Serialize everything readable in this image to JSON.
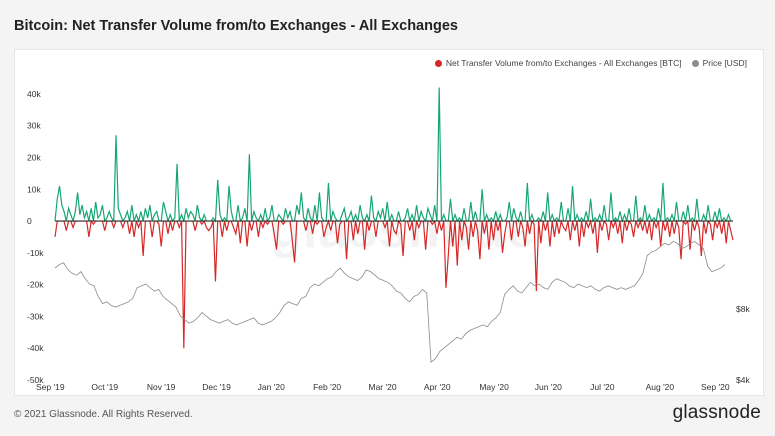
{
  "header": {
    "title": "Bitcoin: Net Transfer Volume from/to Exchanges - All Exchanges"
  },
  "legend": {
    "series1": "Net Transfer Volume from/to Exchanges - All Exchanges [BTC]",
    "series2": "Price [USD]"
  },
  "watermark": "glassnode",
  "footer": {
    "copyright": "© 2021 Glassnode. All Rights Reserved.",
    "logo": "glassnode"
  },
  "colors": {
    "positive": "#17a673",
    "negative": "#d62828",
    "price": "#8c8c8c",
    "legend_net": "#d62828",
    "legend_price": "#8c8c8c"
  },
  "chart_data": {
    "type": "area",
    "x_labels": [
      "Sep '19",
      "Oct '19",
      "Nov '19",
      "Dec '19",
      "Jan '20",
      "Feb '20",
      "Mar '20",
      "Apr '20",
      "May '20",
      "Jun '20",
      "Jul '20",
      "Aug '20",
      "Sep '20"
    ],
    "y_left_ticks": [
      "40k",
      "30k",
      "20k",
      "10k",
      "0",
      "-10k",
      "-20k",
      "-30k",
      "-40k",
      "-50k"
    ],
    "y_left_range": [
      -50000,
      45000
    ],
    "y_right_ticks": [
      "$8k",
      "$4k"
    ],
    "y_right_range": [
      4000,
      21000
    ],
    "net_volume_btc": [
      -5000,
      7000,
      11000,
      5000,
      3000,
      -3000,
      4000,
      2000,
      -2000,
      3000,
      9000,
      2000,
      5000,
      1000,
      3000,
      -5000,
      4000,
      -1000,
      6000,
      1000,
      2000,
      5000,
      -3000,
      1000,
      3000,
      1000,
      -2000,
      27000,
      4000,
      2000,
      -2000,
      1000,
      3000,
      -4000,
      5000,
      -5000,
      2000,
      -2000,
      3000,
      -11000,
      4000,
      1000,
      5000,
      -5000,
      2000,
      3000,
      -1000,
      -8000,
      6000,
      3000,
      -4000,
      2000,
      -3000,
      1000,
      18000,
      -2000,
      2000,
      -40000,
      4000,
      1000,
      3000,
      2000,
      -3000,
      5000,
      1000,
      -1000,
      2000,
      -2000,
      -3000,
      -2000,
      1000,
      -19000,
      13000,
      2000,
      -5000,
      1000,
      -3000,
      11000,
      3000,
      -2000,
      -4000,
      5000,
      -7000,
      1000,
      4000,
      -8000,
      21000,
      -3000,
      3000,
      1000,
      -5000,
      2000,
      -2000,
      4000,
      -1000,
      1000,
      5000,
      -4000,
      -9000,
      2000,
      1000,
      -1000,
      4000,
      1000,
      3000,
      -6000,
      -13000,
      5000,
      2000,
      9000,
      1000,
      -3000,
      4000,
      1000,
      -4000,
      5000,
      -1000,
      9000,
      1000,
      -5000,
      -2000,
      12000,
      -3000,
      3000,
      1000,
      -7000,
      -1000,
      2000,
      4000,
      -12000,
      1000,
      3000,
      -6000,
      2000,
      -4000,
      5000,
      1000,
      -9000,
      2000,
      -3000,
      8000,
      1000,
      -5000,
      3000,
      1000,
      4000,
      -2000,
      6000,
      -8000,
      2000,
      -3000,
      -4000,
      3000,
      -1000,
      -11000,
      1000,
      4000,
      -3000,
      2000,
      -6000,
      5000,
      -2000,
      3000,
      1000,
      -9000,
      4000,
      2000,
      -1000,
      5000,
      -4000,
      42000,
      -3000,
      2000,
      -21000,
      -11000,
      7000,
      -8000,
      2000,
      -14000,
      1000,
      -6000,
      4000,
      -2000,
      -9000,
      6000,
      -5000,
      3000,
      -3000,
      -12000,
      10000,
      -4000,
      2000,
      -9000,
      1000,
      -6000,
      3000,
      -3000,
      2000,
      -10000,
      -4000,
      1000,
      6000,
      -6000,
      4000,
      1000,
      -5000,
      3000,
      -2000,
      -8000,
      12000,
      -4000,
      2000,
      -1000,
      -22000,
      1000,
      -7000,
      3000,
      -3000,
      9000,
      -8000,
      2000,
      -5000,
      1000,
      -4000,
      6000,
      -2000,
      -3000,
      4000,
      -6000,
      11000,
      -3000,
      2000,
      -8000,
      1000,
      -5000,
      3000,
      -2000,
      7000,
      -4000,
      1000,
      -10000,
      2000,
      -3000,
      5000,
      -1000,
      -6000,
      9000,
      -2000,
      1000,
      -4000,
      3000,
      -7000,
      2000,
      -3000,
      4000,
      -1000,
      -5000,
      8000,
      -2000,
      1000,
      -3000,
      5000,
      -4000,
      2000,
      -6000,
      1000,
      -2000,
      4000,
      -8000,
      12000,
      -3000,
      1000,
      -5000,
      2000,
      -4000,
      6000,
      -2000,
      -12000,
      3000,
      -1000,
      5000,
      -9000,
      1000,
      -3000,
      7000,
      -2000,
      -11000,
      2000,
      -4000,
      5000,
      -1000,
      -6000,
      3000,
      -2000,
      4000,
      -4000,
      1000,
      -7000,
      2000,
      -3000,
      -6000
    ],
    "price_usd": [
      10300,
      10500,
      10600,
      10200,
      10000,
      9900,
      10100,
      9700,
      9400,
      9300,
      8700,
      8300,
      8400,
      8200,
      8100,
      8200,
      8300,
      8400,
      8600,
      9200,
      9300,
      9400,
      9200,
      9000,
      9100,
      8700,
      8500,
      8300,
      8100,
      7600,
      7400,
      7200,
      7300,
      7500,
      7800,
      7600,
      7400,
      7300,
      7200,
      7300,
      7400,
      7200,
      7100,
      7200,
      7300,
      7400,
      7500,
      7200,
      7100,
      7200,
      7300,
      7500,
      7800,
      8200,
      8400,
      8300,
      8200,
      8600,
      8700,
      9200,
      9400,
      9300,
      9500,
      9700,
      9800,
      10100,
      10300,
      10000,
      9800,
      9700,
      9600,
      9800,
      10200,
      10100,
      9900,
      9700,
      9600,
      9500,
      9300,
      9000,
      8900,
      8600,
      8400,
      8700,
      8800,
      9100,
      8900,
      5000,
      5200,
      5600,
      5800,
      6000,
      6200,
      6400,
      6300,
      6600,
      6800,
      6900,
      7000,
      7100,
      7000,
      7300,
      7500,
      7800,
      8800,
      9100,
      9300,
      9000,
      8900,
      9200,
      9500,
      9300,
      9400,
      9200,
      9100,
      9500,
      9700,
      9600,
      9500,
      9300,
      9200,
      9400,
      9300,
      9200,
      9300,
      9100,
      9000,
      9200,
      9300,
      9200,
      9100,
      9200,
      9100,
      9200,
      9300,
      9600,
      10000,
      11000,
      11200,
      11300,
      11500,
      11700,
      11600,
      11800,
      11700,
      11400,
      11500,
      11700,
      11800,
      11600,
      11400,
      10400,
      10100,
      10200,
      10300,
      10500
    ]
  }
}
